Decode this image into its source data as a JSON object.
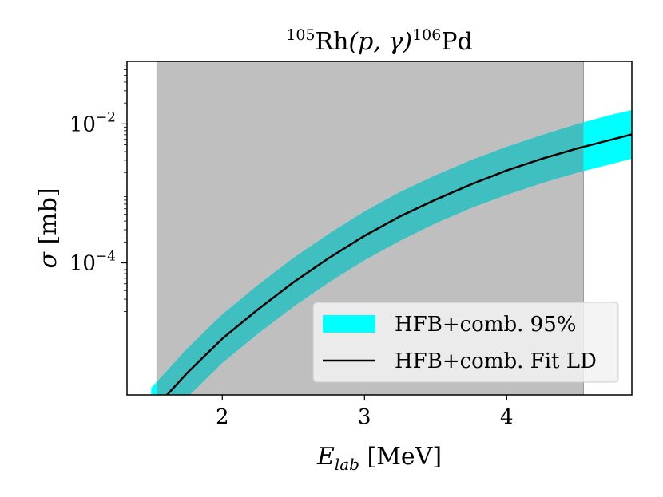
{
  "chart_data": {
    "type": "line",
    "title": {
      "mass_a": "105",
      "target": "Rh",
      "reaction": "(p, γ)",
      "mass_b": "106",
      "product": "Pd"
    },
    "xlabel": {
      "main": "E",
      "sub": "lab",
      "unit": " [MeV]"
    },
    "ylabel": {
      "main": "σ",
      "unit": " [mb]"
    },
    "xlim": [
      1.33,
      4.88
    ],
    "ylim_log10": [
      -5.9,
      -1.1
    ],
    "yscale": "log",
    "x_ticks": [
      {
        "value": 2,
        "label": "2"
      },
      {
        "value": 3,
        "label": "3"
      },
      {
        "value": 4,
        "label": "4"
      }
    ],
    "y_ticks": [
      {
        "exp": -2,
        "base": "10",
        "sup": "−2"
      },
      {
        "exp": -4,
        "base": "10",
        "sup": "−4"
      }
    ],
    "shaded_region": {
      "x0": 1.54,
      "x1": 4.54,
      "color": "#bfbfbf"
    },
    "legend_location": "lower-right",
    "series": [
      {
        "name": "HFB+comb. 95%",
        "kind": "band",
        "color": "#00ffff",
        "x": [
          1.5,
          1.75,
          2.0,
          2.25,
          2.5,
          2.75,
          3.0,
          3.25,
          3.5,
          3.75,
          4.0,
          4.25,
          4.5,
          4.75,
          4.88
        ],
        "lower_log10": [
          -6.5,
          -5.94,
          -5.44,
          -5.02,
          -4.63,
          -4.28,
          -3.96,
          -3.68,
          -3.43,
          -3.21,
          -3.02,
          -2.85,
          -2.7,
          -2.57,
          -2.5
        ],
        "upper_log10": [
          -5.8,
          -5.24,
          -4.74,
          -4.32,
          -3.93,
          -3.58,
          -3.26,
          -2.98,
          -2.74,
          -2.52,
          -2.33,
          -2.16,
          -2.0,
          -1.86,
          -1.8
        ]
      },
      {
        "name": "HFB+comb. Fit LD",
        "kind": "line",
        "color": "#000000",
        "x": [
          1.5,
          1.75,
          2.0,
          2.25,
          2.5,
          2.75,
          3.0,
          3.25,
          3.5,
          3.75,
          4.0,
          4.25,
          4.5,
          4.75,
          4.88
        ],
        "y_log10": [
          -6.15,
          -5.59,
          -5.09,
          -4.67,
          -4.28,
          -3.93,
          -3.61,
          -3.33,
          -3.09,
          -2.87,
          -2.67,
          -2.5,
          -2.35,
          -2.22,
          -2.15
        ]
      }
    ]
  }
}
